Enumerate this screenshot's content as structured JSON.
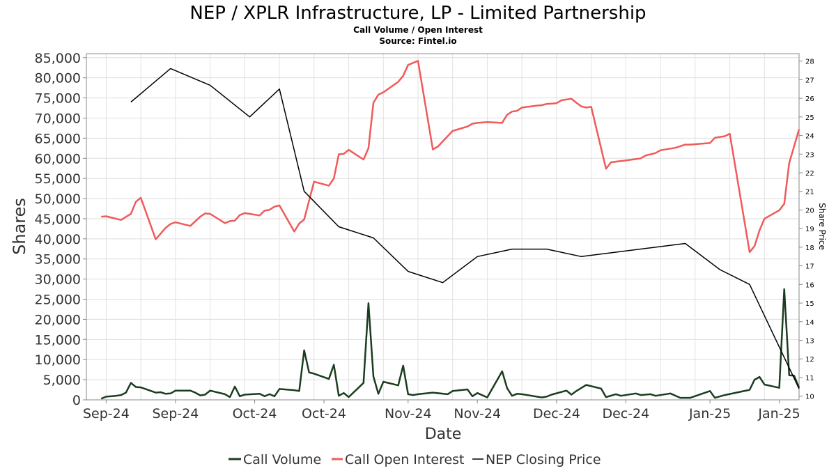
{
  "chart_data": {
    "type": "line",
    "title": "NEP / XPLR Infrastructure, LP - Limited Partnership",
    "subtitle_lines": [
      "Call Volume / Open Interest",
      "Source: Fintel.io"
    ],
    "xlabel": "Date",
    "ylabel": "Shares",
    "y2label": "Share Price",
    "x_tick_labels": [
      "Sep-24",
      "Sep-24",
      "Oct-24",
      "Oct-24",
      "Nov-24",
      "Nov-24",
      "Dec-24",
      "Dec-24",
      "Jan-25",
      "Jan-25"
    ],
    "x_tick_dates": [
      "2024-09-01",
      "2024-09-15",
      "2024-10-01",
      "2024-10-15",
      "2024-11-01",
      "2024-11-15",
      "2024-12-01",
      "2024-12-15",
      "2025-01-01",
      "2025-01-15"
    ],
    "xlim": [
      "2024-08-28",
      "2025-01-19"
    ],
    "ylim": [
      0,
      86000
    ],
    "y_ticks": [
      0,
      5000,
      10000,
      15000,
      20000,
      25000,
      30000,
      35000,
      40000,
      45000,
      50000,
      55000,
      60000,
      65000,
      70000,
      75000,
      80000,
      85000
    ],
    "y_tick_labels": [
      "0",
      "5,000",
      "10,000",
      "15,000",
      "20,000",
      "25,000",
      "30,000",
      "35,000",
      "40,000",
      "45,000",
      "50,000",
      "55,000",
      "60,000",
      "65,000",
      "70,000",
      "75,000",
      "80,000",
      "85,000"
    ],
    "y2lim": [
      9.8,
      28.4
    ],
    "y2_ticks": [
      10,
      11,
      12,
      13,
      14,
      15,
      16,
      17,
      18,
      19,
      20,
      21,
      22,
      23,
      24,
      25,
      26,
      27,
      28
    ],
    "y2_tick_labels": [
      "10",
      "11",
      "12",
      "13",
      "14",
      "15",
      "16",
      "17",
      "18",
      "19",
      "20",
      "21",
      "22",
      "23",
      "24",
      "25",
      "26",
      "27",
      "28"
    ],
    "grid": true,
    "legend_position": "bottom-center",
    "series": [
      {
        "name": "Call Volume",
        "axis": "left",
        "color": "#1b3d1f",
        "points": [
          [
            "2024-08-31",
            300
          ],
          [
            "2024-09-01",
            800
          ],
          [
            "2024-09-03",
            1000
          ],
          [
            "2024-09-04",
            1200
          ],
          [
            "2024-09-05",
            1800
          ],
          [
            "2024-09-06",
            4200
          ],
          [
            "2024-09-07",
            3200
          ],
          [
            "2024-09-08",
            3100
          ],
          [
            "2024-09-11",
            1800
          ],
          [
            "2024-09-12",
            1900
          ],
          [
            "2024-09-13",
            1500
          ],
          [
            "2024-09-14",
            1600
          ],
          [
            "2024-09-15",
            2300
          ],
          [
            "2024-09-18",
            2300
          ],
          [
            "2024-09-19",
            1800
          ],
          [
            "2024-09-20",
            1100
          ],
          [
            "2024-09-21",
            1300
          ],
          [
            "2024-09-22",
            2300
          ],
          [
            "2024-09-25",
            1400
          ],
          [
            "2024-09-26",
            700
          ],
          [
            "2024-09-27",
            3300
          ],
          [
            "2024-09-28",
            900
          ],
          [
            "2024-09-29",
            1300
          ],
          [
            "2024-10-02",
            1500
          ],
          [
            "2024-10-03",
            900
          ],
          [
            "2024-10-04",
            1400
          ],
          [
            "2024-10-05",
            900
          ],
          [
            "2024-10-06",
            2700
          ],
          [
            "2024-10-09",
            2400
          ],
          [
            "2024-10-10",
            2200
          ],
          [
            "2024-10-11",
            12300
          ],
          [
            "2024-10-12",
            6800
          ],
          [
            "2024-10-13",
            6500
          ],
          [
            "2024-10-16",
            5200
          ],
          [
            "2024-10-17",
            8700
          ],
          [
            "2024-10-18",
            1000
          ],
          [
            "2024-10-19",
            1700
          ],
          [
            "2024-10-20",
            700
          ],
          [
            "2024-10-23",
            4200
          ],
          [
            "2024-10-24",
            24000
          ],
          [
            "2024-10-25",
            5800
          ],
          [
            "2024-10-26",
            1500
          ],
          [
            "2024-10-27",
            4500
          ],
          [
            "2024-10-30",
            3600
          ],
          [
            "2024-10-31",
            8500
          ],
          [
            "2024-11-01",
            1400
          ],
          [
            "2024-11-02",
            1200
          ],
          [
            "2024-11-03",
            1400
          ],
          [
            "2024-11-06",
            1800
          ],
          [
            "2024-11-09",
            1400
          ],
          [
            "2024-11-10",
            2200
          ],
          [
            "2024-11-13",
            2600
          ],
          [
            "2024-11-14",
            900
          ],
          [
            "2024-11-15",
            1700
          ],
          [
            "2024-11-17",
            600
          ],
          [
            "2024-11-20",
            7100
          ],
          [
            "2024-11-21",
            2900
          ],
          [
            "2024-11-22",
            1000
          ],
          [
            "2024-11-23",
            1500
          ],
          [
            "2024-11-24",
            1400
          ],
          [
            "2024-11-27",
            800
          ],
          [
            "2024-11-28",
            600
          ],
          [
            "2024-11-29",
            800
          ],
          [
            "2024-11-30",
            1300
          ],
          [
            "2024-12-03",
            2300
          ],
          [
            "2024-12-04",
            1300
          ],
          [
            "2024-12-05",
            2200
          ],
          [
            "2024-12-07",
            3700
          ],
          [
            "2024-12-10",
            2800
          ],
          [
            "2024-12-11",
            700
          ],
          [
            "2024-12-13",
            1400
          ],
          [
            "2024-12-14",
            1000
          ],
          [
            "2024-12-17",
            1600
          ],
          [
            "2024-12-18",
            1200
          ],
          [
            "2024-12-20",
            1400
          ],
          [
            "2024-12-21",
            1000
          ],
          [
            "2024-12-24",
            1600
          ],
          [
            "2024-12-26",
            500
          ],
          [
            "2024-12-28",
            500
          ],
          [
            "2025-01-01",
            2200
          ],
          [
            "2025-01-02",
            500
          ],
          [
            "2025-01-04",
            1200
          ],
          [
            "2025-01-09",
            2500
          ],
          [
            "2025-01-10",
            5000
          ],
          [
            "2025-01-11",
            5700
          ],
          [
            "2025-01-12",
            3800
          ],
          [
            "2025-01-15",
            3000
          ],
          [
            "2025-01-16",
            27500
          ],
          [
            "2025-01-17",
            6100
          ],
          [
            "2025-01-18",
            6000
          ],
          [
            "2025-01-19",
            3000
          ]
        ]
      },
      {
        "name": "Call Open Interest",
        "axis": "left",
        "color": "#f05a5a",
        "points": [
          [
            "2024-08-31",
            45500
          ],
          [
            "2024-09-01",
            45600
          ],
          [
            "2024-09-04",
            44700
          ],
          [
            "2024-09-06",
            46200
          ],
          [
            "2024-09-07",
            49200
          ],
          [
            "2024-09-08",
            50200
          ],
          [
            "2024-09-11",
            39900
          ],
          [
            "2024-09-13",
            42700
          ],
          [
            "2024-09-14",
            43700
          ],
          [
            "2024-09-15",
            44100
          ],
          [
            "2024-09-18",
            43200
          ],
          [
            "2024-09-20",
            45500
          ],
          [
            "2024-09-21",
            46300
          ],
          [
            "2024-09-22",
            46200
          ],
          [
            "2024-09-25",
            43900
          ],
          [
            "2024-09-26",
            44400
          ],
          [
            "2024-09-27",
            44500
          ],
          [
            "2024-09-28",
            45900
          ],
          [
            "2024-09-29",
            46400
          ],
          [
            "2024-10-02",
            45800
          ],
          [
            "2024-10-03",
            47000
          ],
          [
            "2024-10-04",
            47200
          ],
          [
            "2024-10-05",
            48000
          ],
          [
            "2024-10-06",
            48300
          ],
          [
            "2024-10-09",
            41800
          ],
          [
            "2024-10-10",
            43800
          ],
          [
            "2024-10-11",
            44800
          ],
          [
            "2024-10-13",
            54200
          ],
          [
            "2024-10-16",
            53200
          ],
          [
            "2024-10-17",
            55000
          ],
          [
            "2024-10-18",
            61000
          ],
          [
            "2024-10-19",
            61100
          ],
          [
            "2024-10-20",
            62100
          ],
          [
            "2024-10-23",
            59700
          ],
          [
            "2024-10-24",
            62500
          ],
          [
            "2024-10-25",
            73800
          ],
          [
            "2024-10-26",
            75800
          ],
          [
            "2024-10-27",
            76400
          ],
          [
            "2024-10-30",
            79000
          ],
          [
            "2024-10-31",
            80500
          ],
          [
            "2024-11-01",
            83200
          ],
          [
            "2024-11-02",
            83700
          ],
          [
            "2024-11-03",
            84200
          ],
          [
            "2024-11-06",
            62200
          ],
          [
            "2024-11-07",
            62900
          ],
          [
            "2024-11-10",
            66800
          ],
          [
            "2024-11-13",
            67900
          ],
          [
            "2024-11-14",
            68600
          ],
          [
            "2024-11-15",
            68800
          ],
          [
            "2024-11-17",
            69000
          ],
          [
            "2024-11-20",
            68800
          ],
          [
            "2024-11-21",
            70800
          ],
          [
            "2024-11-22",
            71600
          ],
          [
            "2024-11-23",
            71800
          ],
          [
            "2024-11-24",
            72600
          ],
          [
            "2024-11-27",
            73100
          ],
          [
            "2024-11-28",
            73200
          ],
          [
            "2024-11-29",
            73500
          ],
          [
            "2024-11-30",
            73600
          ],
          [
            "2024-12-01",
            73700
          ],
          [
            "2024-12-02",
            74400
          ],
          [
            "2024-12-04",
            74800
          ],
          [
            "2024-12-05",
            73800
          ],
          [
            "2024-12-06",
            72900
          ],
          [
            "2024-12-07",
            72600
          ],
          [
            "2024-12-08",
            72800
          ],
          [
            "2024-12-11",
            57400
          ],
          [
            "2024-12-12",
            59000
          ],
          [
            "2024-12-17",
            59800
          ],
          [
            "2024-12-18",
            60000
          ],
          [
            "2024-12-19",
            60700
          ],
          [
            "2024-12-20",
            61000
          ],
          [
            "2024-12-21",
            61300
          ],
          [
            "2024-12-22",
            62000
          ],
          [
            "2024-12-25",
            62600
          ],
          [
            "2024-12-27",
            63400
          ],
          [
            "2024-12-28",
            63400
          ],
          [
            "2024-12-29",
            63500
          ],
          [
            "2025-01-01",
            63800
          ],
          [
            "2025-01-02",
            65100
          ],
          [
            "2025-01-03",
            65300
          ],
          [
            "2025-01-04",
            65500
          ],
          [
            "2025-01-05",
            66100
          ],
          [
            "2025-01-09",
            36700
          ],
          [
            "2025-01-10",
            38200
          ],
          [
            "2025-01-11",
            42100
          ],
          [
            "2025-01-12",
            45000
          ],
          [
            "2025-01-15",
            47100
          ],
          [
            "2025-01-16",
            48700
          ],
          [
            "2025-01-17",
            58800
          ],
          [
            "2025-01-19",
            67200
          ]
        ]
      },
      {
        "name": "NEP Closing Price",
        "axis": "right",
        "color": "#000000",
        "points": [
          [
            "2024-09-06",
            25.8
          ],
          [
            "2024-09-14",
            27.6
          ],
          [
            "2024-09-22",
            26.7
          ],
          [
            "2024-09-30",
            25.0
          ],
          [
            "2024-10-06",
            26.5
          ],
          [
            "2024-10-11",
            21.0
          ],
          [
            "2024-10-18",
            19.1
          ],
          [
            "2024-10-25",
            18.5
          ],
          [
            "2024-11-01",
            16.7
          ],
          [
            "2024-11-08",
            16.1
          ],
          [
            "2024-11-15",
            17.5
          ],
          [
            "2024-11-22",
            17.9
          ],
          [
            "2024-11-29",
            17.9
          ],
          [
            "2024-12-06",
            17.5
          ],
          [
            "2024-12-27",
            18.2
          ],
          [
            "2025-01-03",
            16.8
          ],
          [
            "2025-01-09",
            16.0
          ],
          [
            "2025-01-19",
            10.4
          ]
        ]
      }
    ]
  }
}
